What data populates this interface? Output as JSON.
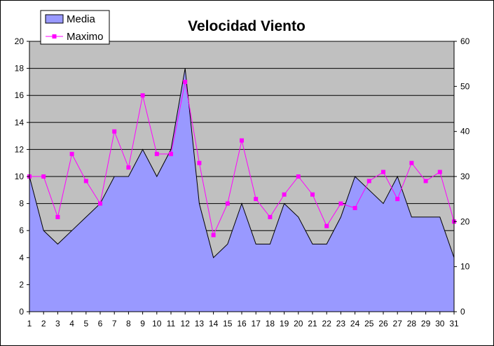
{
  "chart_data": {
    "type": "area+line",
    "title": "Velocidad Viento",
    "categories": [
      "1",
      "2",
      "3",
      "4",
      "5",
      "6",
      "7",
      "8",
      "9",
      "10",
      "11",
      "12",
      "13",
      "14",
      "15",
      "16",
      "17",
      "18",
      "19",
      "20",
      "21",
      "22",
      "23",
      "24",
      "25",
      "26",
      "27",
      "28",
      "29",
      "30",
      "31"
    ],
    "series": [
      {
        "name": "Media",
        "type": "area",
        "axis": "left",
        "color": "#9999ff",
        "values": [
          10,
          6,
          5,
          6,
          7,
          8,
          10,
          10,
          12,
          10,
          12,
          18,
          8,
          4,
          5,
          8,
          5,
          5,
          8,
          7,
          5,
          5,
          7,
          10,
          9,
          8,
          10,
          7,
          7,
          7,
          4
        ]
      },
      {
        "name": "Maximo",
        "type": "line",
        "axis": "right",
        "color": "#ff00ff",
        "values": [
          30,
          30,
          21,
          35,
          29,
          24,
          40,
          32,
          48,
          35,
          35,
          51,
          33,
          17,
          24,
          38,
          25,
          21,
          26,
          30,
          26,
          19,
          24,
          23,
          29,
          31,
          25,
          33,
          29,
          31,
          20
        ]
      }
    ],
    "y_left": {
      "min": 0,
      "max": 20,
      "step": 2,
      "ticks": [
        "0",
        "2",
        "4",
        "6",
        "8",
        "10",
        "12",
        "14",
        "16",
        "18",
        "20"
      ]
    },
    "y_right": {
      "min": 0,
      "max": 60,
      "step": 10,
      "ticks": [
        "0",
        "10",
        "20",
        "30",
        "40",
        "50",
        "60"
      ]
    },
    "plot_background": "#c0c0c0",
    "grid": true,
    "legend": "top-left",
    "xlabel": "",
    "ylabel": ""
  }
}
